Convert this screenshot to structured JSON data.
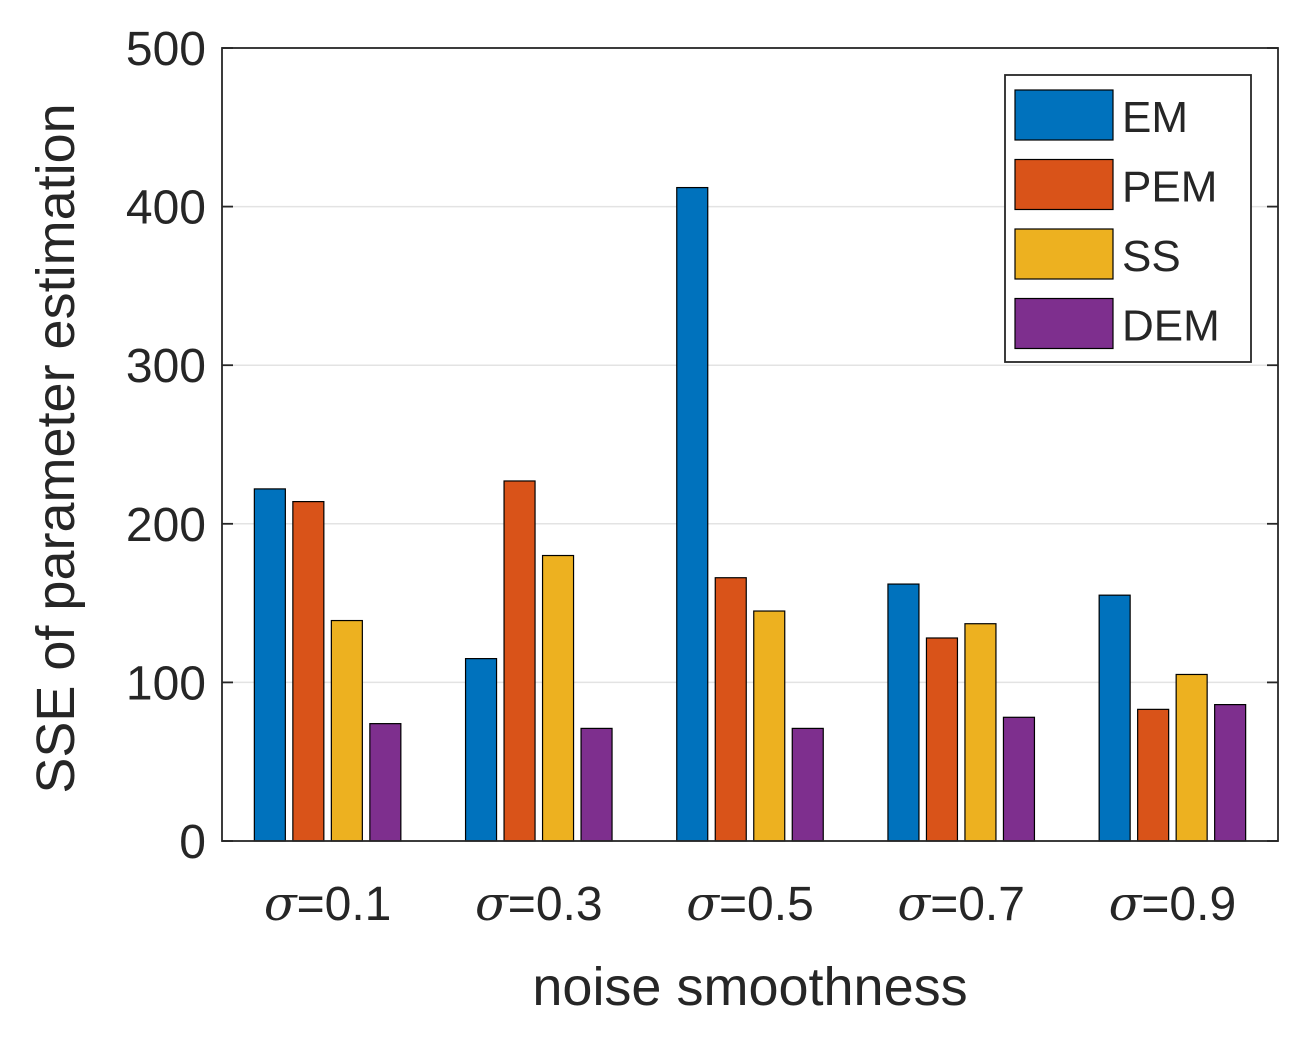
{
  "chart_data": {
    "type": "bar",
    "title": "",
    "xlabel": "noise smoothness",
    "ylabel": "SSE of parameter estimation",
    "categories": [
      "σ=0.1",
      "σ=0.3",
      "σ=0.5",
      "σ=0.7",
      "σ=0.9"
    ],
    "category_parts": [
      {
        "symbol": "σ",
        "value": "=0.1"
      },
      {
        "symbol": "σ",
        "value": "=0.3"
      },
      {
        "symbol": "σ",
        "value": "=0.5"
      },
      {
        "symbol": "σ",
        "value": "=0.7"
      },
      {
        "symbol": "σ",
        "value": "=0.9"
      }
    ],
    "ylim": [
      0,
      500
    ],
    "yticks": [
      0,
      100,
      200,
      300,
      400,
      500
    ],
    "ytick_labels": [
      "0",
      "100",
      "200",
      "300",
      "400",
      "500"
    ],
    "grid": "horizontal",
    "legend_position": "top-right",
    "series": [
      {
        "name": "EM",
        "color": "#0072BD",
        "values": [
          222,
          115,
          412,
          162,
          155
        ]
      },
      {
        "name": "PEM",
        "color": "#D95319",
        "values": [
          214,
          227,
          166,
          128,
          83
        ]
      },
      {
        "name": "SS",
        "color": "#EDB120",
        "values": [
          139,
          180,
          145,
          137,
          105
        ]
      },
      {
        "name": "DEM",
        "color": "#7E2F8E",
        "values": [
          74,
          71,
          71,
          78,
          86
        ]
      }
    ]
  }
}
